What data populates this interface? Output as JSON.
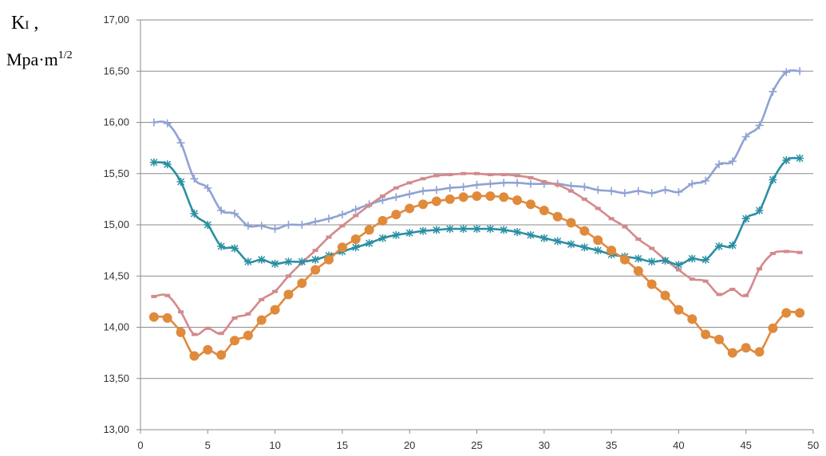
{
  "chart_data": {
    "type": "line",
    "title": "",
    "xlabel": "",
    "ylabel": {
      "main": "K",
      "sub": "I",
      "comma": " ,",
      "unit": "Mpa·m",
      "unit_exp": "1/2"
    },
    "xlim": [
      0,
      50
    ],
    "ylim": [
      13.0,
      17.0
    ],
    "x_ticks": [
      0,
      5,
      10,
      15,
      20,
      25,
      30,
      35,
      40,
      45,
      50
    ],
    "y_ticks": [
      "13,00",
      "13,50",
      "14,00",
      "14,50",
      "15,00",
      "15,50",
      "16,00",
      "16,50",
      "17,00"
    ],
    "y_tick_values": [
      13.0,
      13.5,
      14.0,
      14.5,
      15.0,
      15.5,
      16.0,
      16.5,
      17.0
    ],
    "grid": "horizontal",
    "legend": "none",
    "x": [
      1,
      2,
      3,
      4,
      5,
      6,
      7,
      8,
      9,
      10,
      11,
      12,
      13,
      14,
      15,
      16,
      17,
      18,
      19,
      20,
      21,
      22,
      23,
      24,
      25,
      26,
      27,
      28,
      29,
      30,
      31,
      32,
      33,
      34,
      35,
      36,
      37,
      38,
      39,
      40,
      41,
      42,
      43,
      44,
      45,
      46,
      47,
      48,
      49
    ],
    "series": [
      {
        "color": "#8FA2D4",
        "marker": "plus",
        "values": [
          16.0,
          15.99,
          15.8,
          15.45,
          15.36,
          15.14,
          15.11,
          14.99,
          14.99,
          14.96,
          15.0,
          15.0,
          15.03,
          15.06,
          15.1,
          15.15,
          15.2,
          15.24,
          15.27,
          15.3,
          15.33,
          15.34,
          15.36,
          15.37,
          15.39,
          15.4,
          15.41,
          15.41,
          15.4,
          15.4,
          15.4,
          15.38,
          15.37,
          15.34,
          15.33,
          15.31,
          15.33,
          15.31,
          15.34,
          15.32,
          15.4,
          15.43,
          15.59,
          15.62,
          15.86,
          15.97,
          16.3,
          16.49,
          16.5
        ]
      },
      {
        "color": "#D4898C",
        "marker": "dash",
        "values": [
          14.3,
          14.31,
          14.15,
          13.93,
          13.99,
          13.94,
          14.09,
          14.13,
          14.27,
          14.35,
          14.5,
          14.63,
          14.75,
          14.88,
          14.99,
          15.09,
          15.19,
          15.28,
          15.36,
          15.41,
          15.45,
          15.48,
          15.49,
          15.5,
          15.5,
          15.49,
          15.49,
          15.48,
          15.46,
          15.42,
          15.39,
          15.33,
          15.25,
          15.16,
          15.06,
          14.98,
          14.86,
          14.77,
          14.66,
          14.56,
          14.47,
          14.45,
          14.32,
          14.37,
          14.31,
          14.57,
          14.72,
          14.74,
          14.73
        ]
      },
      {
        "color": "#2B8FA3",
        "marker": "asterisk",
        "values": [
          15.61,
          15.59,
          15.42,
          15.11,
          15.0,
          14.79,
          14.77,
          14.64,
          14.66,
          14.62,
          14.64,
          14.64,
          14.66,
          14.7,
          14.74,
          14.78,
          14.82,
          14.87,
          14.9,
          14.92,
          14.94,
          14.95,
          14.96,
          14.96,
          14.96,
          14.96,
          14.95,
          14.93,
          14.9,
          14.87,
          14.84,
          14.81,
          14.78,
          14.75,
          14.71,
          14.69,
          14.67,
          14.64,
          14.65,
          14.61,
          14.67,
          14.66,
          14.79,
          14.8,
          15.06,
          15.14,
          15.44,
          15.63,
          15.65
        ]
      },
      {
        "color": "#E08A3C",
        "marker": "circle",
        "values": [
          14.1,
          14.09,
          13.95,
          13.72,
          13.78,
          13.73,
          13.87,
          13.92,
          14.07,
          14.17,
          14.32,
          14.43,
          14.56,
          14.66,
          14.78,
          14.86,
          14.95,
          15.04,
          15.1,
          15.16,
          15.2,
          15.23,
          15.25,
          15.27,
          15.28,
          15.28,
          15.27,
          15.24,
          15.2,
          15.14,
          15.08,
          15.02,
          14.94,
          14.85,
          14.75,
          14.66,
          14.55,
          14.42,
          14.31,
          14.17,
          14.08,
          13.93,
          13.88,
          13.75,
          13.8,
          13.76,
          13.99,
          14.14,
          14.14
        ]
      }
    ]
  }
}
